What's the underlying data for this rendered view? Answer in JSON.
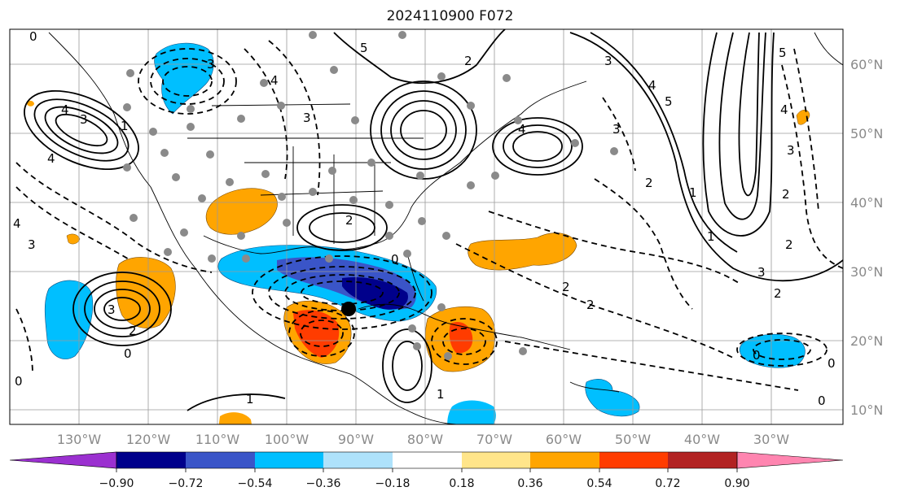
{
  "title": "2024110900 F072",
  "map": {
    "lon_labels": [
      "130°W",
      "120°W",
      "110°W",
      "100°W",
      "90°W",
      "80°W",
      "70°W",
      "60°W",
      "50°W",
      "40°W",
      "30°W"
    ],
    "lat_labels": [
      "60°N",
      "50°N",
      "40°N",
      "30°N",
      "20°N",
      "10°N"
    ],
    "contour_labels": [
      "0",
      "3",
      "4",
      "4",
      "1",
      "3",
      "5",
      "2",
      "3",
      "4",
      "3",
      "4",
      "4",
      "3",
      "2",
      "2",
      "3",
      "4",
      "1",
      "2",
      "0",
      "5",
      "2",
      "3",
      "0",
      "2",
      "0",
      "3",
      "0",
      "2",
      "0",
      "1",
      "0",
      "1",
      "4",
      "5",
      "3",
      "2",
      "1",
      "2"
    ],
    "marker": "storm-center"
  },
  "colorbar": {
    "ticks": [
      "−0.90",
      "−0.72",
      "−0.54",
      "−0.36",
      "−0.18",
      "0.18",
      "0.36",
      "0.54",
      "0.72",
      "0.90"
    ],
    "colors": [
      "#9b30d0",
      "#00008b",
      "#3a55c8",
      "#00bfff",
      "#aee2fb",
      "#ffffff",
      "#ffe58a",
      "#ffa500",
      "#ff3c00",
      "#b22222",
      "#ff85b0"
    ]
  }
}
